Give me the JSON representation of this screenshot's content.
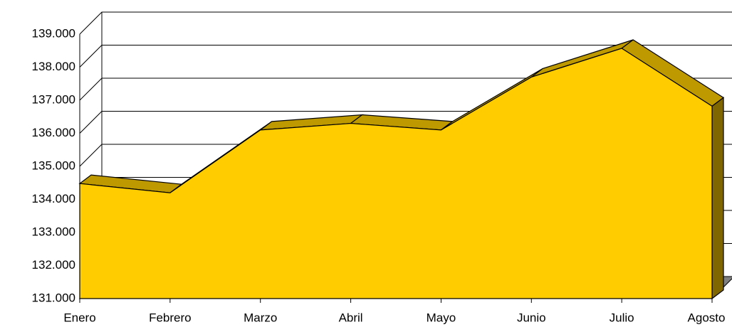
{
  "chart_data": {
    "type": "area3d",
    "categories": [
      "Enero",
      "Febrero",
      "Marzo",
      "Abril",
      "Mayo",
      "Junio",
      "Julio",
      "Agosto"
    ],
    "values": [
      134480,
      134200,
      136100,
      136300,
      136100,
      137700,
      138570,
      136820
    ],
    "color": "#ffcc00",
    "ylim": [
      131000,
      139000
    ],
    "yticks": [
      {
        "value": 131000,
        "label": "131.000"
      },
      {
        "value": 132000,
        "label": "132.000"
      },
      {
        "value": 133000,
        "label": "133.000"
      },
      {
        "value": 134000,
        "label": "134.000"
      },
      {
        "value": 135000,
        "label": "135.000"
      },
      {
        "value": 136000,
        "label": "136.000"
      },
      {
        "value": 137000,
        "label": "137.000"
      },
      {
        "value": 138000,
        "label": "138.000"
      },
      {
        "value": 139000,
        "label": "139.000"
      }
    ],
    "grid": true
  }
}
